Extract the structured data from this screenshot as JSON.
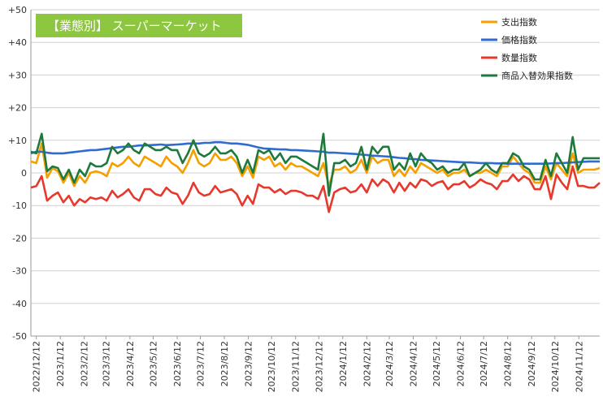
{
  "chart_data": {
    "type": "line",
    "title": "【業態別】 スーパーマーケット",
    "title_bg_color": "#8dc63f",
    "ylim": [
      -50,
      50
    ],
    "y_ticks": [
      "+50",
      "+40",
      "+30",
      "+20",
      "+10",
      "0",
      "-10",
      "-20",
      "-30",
      "-40",
      "-50"
    ],
    "x_range": [
      "2022-12-05",
      "2024-12-09"
    ],
    "x_ticks": [
      "2022/12/12",
      "2023/1/12",
      "2023/2/12",
      "2023/3/12",
      "2023/4/12",
      "2023/5/12",
      "2023/6/12",
      "2023/7/12",
      "2023/8/12",
      "2023/9/12",
      "2023/10/12",
      "2023/11/12",
      "2023/12/12",
      "2024/1/12",
      "2024/2/12",
      "2024/3/12",
      "2024/4/12",
      "2024/5/12",
      "2024/6/12",
      "2024/7/12",
      "2024/8/12",
      "2024/9/12",
      "2024/10/12",
      "2024/11/12"
    ],
    "x": [
      "2022-12-05",
      "2022-12-12",
      "2022-12-19",
      "2022-12-26",
      "2023-01-02",
      "2023-01-09",
      "2023-01-16",
      "2023-01-23",
      "2023-01-30",
      "2023-02-06",
      "2023-02-13",
      "2023-02-20",
      "2023-02-27",
      "2023-03-06",
      "2023-03-13",
      "2023-03-20",
      "2023-03-27",
      "2023-04-03",
      "2023-04-10",
      "2023-04-17",
      "2023-04-24",
      "2023-05-01",
      "2023-05-08",
      "2023-05-15",
      "2023-05-22",
      "2023-05-29",
      "2023-06-05",
      "2023-06-12",
      "2023-06-19",
      "2023-06-26",
      "2023-07-03",
      "2023-07-10",
      "2023-07-17",
      "2023-07-24",
      "2023-07-31",
      "2023-08-07",
      "2023-08-14",
      "2023-08-21",
      "2023-08-28",
      "2023-09-04",
      "2023-09-11",
      "2023-09-18",
      "2023-09-25",
      "2023-10-02",
      "2023-10-09",
      "2023-10-16",
      "2023-10-23",
      "2023-10-30",
      "2023-11-06",
      "2023-11-13",
      "2023-11-20",
      "2023-11-27",
      "2023-12-04",
      "2023-12-11",
      "2023-12-18",
      "2023-12-25",
      "2024-01-01",
      "2024-01-08",
      "2024-01-15",
      "2024-01-22",
      "2024-01-29",
      "2024-02-05",
      "2024-02-12",
      "2024-02-19",
      "2024-02-26",
      "2024-03-04",
      "2024-03-11",
      "2024-03-18",
      "2024-03-25",
      "2024-04-01",
      "2024-04-08",
      "2024-04-15",
      "2024-04-22",
      "2024-04-29",
      "2024-05-06",
      "2024-05-13",
      "2024-05-20",
      "2024-05-27",
      "2024-06-03",
      "2024-06-10",
      "2024-06-17",
      "2024-06-24",
      "2024-07-01",
      "2024-07-08",
      "2024-07-15",
      "2024-07-22",
      "2024-07-29",
      "2024-08-05",
      "2024-08-12",
      "2024-08-19",
      "2024-08-26",
      "2024-09-02",
      "2024-09-09",
      "2024-09-16",
      "2024-09-23",
      "2024-09-30",
      "2024-10-07",
      "2024-10-14",
      "2024-10-21",
      "2024-10-28",
      "2024-11-04",
      "2024-11-11",
      "2024-11-18",
      "2024-11-25",
      "2024-12-02",
      "2024-12-09"
    ],
    "series": [
      {
        "name": "支出指数",
        "color": "#f5a000",
        "values": [
          3.5,
          3,
          9,
          -1.5,
          1.5,
          0.5,
          -3,
          0,
          -4,
          -1,
          -3,
          0,
          0.5,
          0,
          -1,
          3,
          2,
          3,
          5,
          3,
          2,
          5,
          4,
          3,
          2,
          5,
          3,
          2,
          0,
          3,
          7,
          3,
          2,
          3,
          6,
          4,
          4,
          5,
          3,
          -1,
          2,
          -1.5,
          5,
          4,
          5,
          2,
          3,
          1,
          3,
          2,
          2,
          1,
          0,
          -1,
          3,
          -4,
          1,
          1,
          2,
          0,
          1,
          4,
          0,
          5,
          3,
          4,
          4,
          -1,
          1,
          -1,
          2,
          0,
          3,
          2,
          1,
          0,
          1,
          -1,
          0,
          0,
          1,
          -1,
          0,
          0,
          1,
          0,
          -1,
          2,
          2,
          5,
          3,
          1,
          0,
          -3,
          -3,
          2,
          -2,
          3,
          1,
          -1,
          6,
          0,
          1,
          1,
          1,
          1.5
        ]
      },
      {
        "name": "価格指数",
        "color": "#2f6bd0",
        "values": [
          6,
          6.5,
          6.5,
          6.2,
          6,
          6,
          6,
          6.2,
          6.4,
          6.6,
          6.8,
          7,
          7,
          7.2,
          7.4,
          7.6,
          7.8,
          8,
          8,
          8.2,
          8.4,
          8.4,
          8.5,
          8.6,
          8.7,
          8.5,
          8.6,
          8.7,
          8.8,
          9,
          9,
          9,
          9.2,
          9.2,
          9.4,
          9.4,
          9.2,
          9,
          9,
          8.8,
          8.6,
          8.2,
          7.8,
          7.5,
          7.4,
          7.3,
          7.2,
          7.2,
          7,
          7,
          6.9,
          6.8,
          6.7,
          6.6,
          6.5,
          6.2,
          6.2,
          6.1,
          6,
          5.9,
          5.8,
          5.6,
          5.5,
          5.3,
          5.2,
          5.1,
          5,
          4.8,
          4.6,
          4.5,
          4.3,
          4.2,
          4,
          3.9,
          3.8,
          3.7,
          3.6,
          3.5,
          3.4,
          3.3,
          3.2,
          3.2,
          3.1,
          3,
          3,
          3,
          2.9,
          2.9,
          2.8,
          2.8,
          2.8,
          2.8,
          2.8,
          2.8,
          2.8,
          2.8,
          2.9,
          3,
          3,
          3.1,
          3.2,
          3.3,
          3.4,
          3.5,
          3.5,
          3.5
        ]
      },
      {
        "name": "数量指数",
        "color": "#e8382c",
        "values": [
          -4.5,
          -4,
          -1,
          -8.5,
          -7,
          -6,
          -9,
          -7,
          -10,
          -8,
          -9,
          -7.5,
          -8,
          -7.5,
          -8.5,
          -5.5,
          -7.5,
          -6.5,
          -5,
          -7.5,
          -8.5,
          -5,
          -5,
          -6.5,
          -7,
          -4.5,
          -6,
          -6.5,
          -9.5,
          -7,
          -3,
          -6,
          -7,
          -6.5,
          -4,
          -6,
          -5.5,
          -5,
          -6.5,
          -10,
          -7,
          -9.5,
          -3.5,
          -4.5,
          -4.5,
          -6,
          -5,
          -6.5,
          -5.5,
          -5.5,
          -6,
          -7,
          -7,
          -8,
          -4,
          -12,
          -6,
          -5,
          -4.5,
          -6,
          -5.5,
          -3.5,
          -6,
          -2,
          -4,
          -2,
          -3,
          -6,
          -3,
          -5.5,
          -3,
          -4.5,
          -2,
          -2.5,
          -4,
          -3,
          -2.5,
          -5,
          -3.5,
          -3.5,
          -2.5,
          -4.5,
          -3.5,
          -2,
          -3,
          -3.5,
          -5,
          -2.5,
          -2.5,
          -0.5,
          -2.5,
          -1,
          -2,
          -5,
          -5,
          -1,
          -8,
          -0.5,
          -3,
          -5,
          2,
          -4,
          -4,
          -4.5,
          -4.5,
          -3
        ]
      },
      {
        "name": "商品入替効果指数",
        "color": "#1e7a3c",
        "values": [
          6.5,
          6,
          12,
          0.5,
          2,
          1.5,
          -2,
          1,
          -3,
          1,
          -1,
          3,
          2,
          2,
          3,
          8,
          6,
          7,
          9,
          7,
          6,
          9,
          8,
          7,
          7,
          8,
          7,
          7,
          3,
          6,
          10,
          6,
          5,
          6,
          8,
          6,
          6,
          7,
          5,
          0,
          4,
          0,
          7,
          6,
          7,
          4,
          6,
          3,
          5,
          5,
          4,
          3,
          2,
          1,
          12,
          -7,
          3,
          3,
          4,
          2,
          3,
          8,
          1,
          8,
          6,
          8,
          8,
          1,
          3,
          1,
          6,
          2,
          6,
          4,
          3,
          1,
          2,
          0,
          1,
          1,
          3,
          -1,
          0,
          1,
          3,
          1,
          0,
          3,
          3,
          6,
          5,
          2,
          1,
          -2,
          -2,
          4,
          -1,
          6,
          3,
          0,
          11,
          1,
          4.5,
          4.5,
          4.5,
          4.5
        ]
      }
    ]
  }
}
